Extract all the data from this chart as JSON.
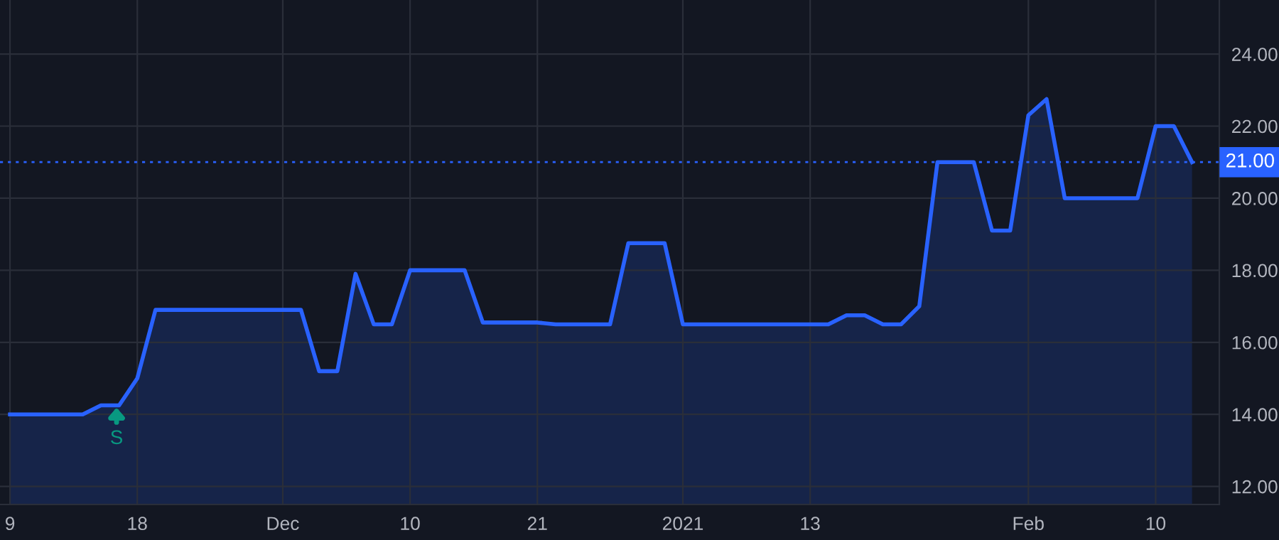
{
  "chart_data": {
    "type": "area",
    "categories": [
      "9",
      null,
      null,
      null,
      null,
      null,
      null,
      "18",
      null,
      null,
      null,
      null,
      null,
      null,
      null,
      "Dec",
      null,
      null,
      null,
      null,
      null,
      null,
      "10",
      null,
      null,
      null,
      null,
      null,
      null,
      "21",
      null,
      null,
      null,
      null,
      null,
      null,
      null,
      "2021",
      null,
      null,
      null,
      null,
      null,
      null,
      "13",
      null,
      null,
      null,
      null,
      null,
      null,
      null,
      null,
      null,
      null,
      null,
      "Feb",
      null,
      null,
      null,
      null,
      null,
      null,
      "10",
      null,
      null
    ],
    "series": [
      {
        "color": "#2962ff",
        "values": [
          14.0,
          14.0,
          14.0,
          14.0,
          14.0,
          14.25,
          14.25,
          15.0,
          16.9,
          16.9,
          16.9,
          16.9,
          16.9,
          16.9,
          16.9,
          16.9,
          16.9,
          15.2,
          15.2,
          17.9,
          16.5,
          16.5,
          18.0,
          18.0,
          18.0,
          18.0,
          16.55,
          16.55,
          16.55,
          16.55,
          16.5,
          16.5,
          16.5,
          16.5,
          18.75,
          18.75,
          18.75,
          16.5,
          16.5,
          16.5,
          16.5,
          16.5,
          16.5,
          16.5,
          16.5,
          16.5,
          16.75,
          16.75,
          16.5,
          16.5,
          17.0,
          21.0,
          21.0,
          21.0,
          19.1,
          19.1,
          22.3,
          22.75,
          20.0,
          20.0,
          20.0,
          20.0,
          20.0,
          22.0,
          22.0,
          21.0
        ]
      }
    ],
    "ylim": [
      11.5,
      25.5
    ],
    "yticks": [
      {
        "value": 12,
        "label": "12.00"
      },
      {
        "value": 14,
        "label": "14.00"
      },
      {
        "value": 16,
        "label": "16.00"
      },
      {
        "value": 18,
        "label": "18.00"
      },
      {
        "value": 20,
        "label": "20.00"
      },
      {
        "value": 22,
        "label": "22.00"
      },
      {
        "value": 24,
        "label": "24.00"
      }
    ],
    "ref_lines": [
      {
        "axis": "y",
        "value": 21,
        "label": "21.00",
        "color": "#2962ff",
        "line_style": "dotted"
      }
    ],
    "annotations": [
      "S"
    ],
    "grid": true,
    "legend": false
  }
}
